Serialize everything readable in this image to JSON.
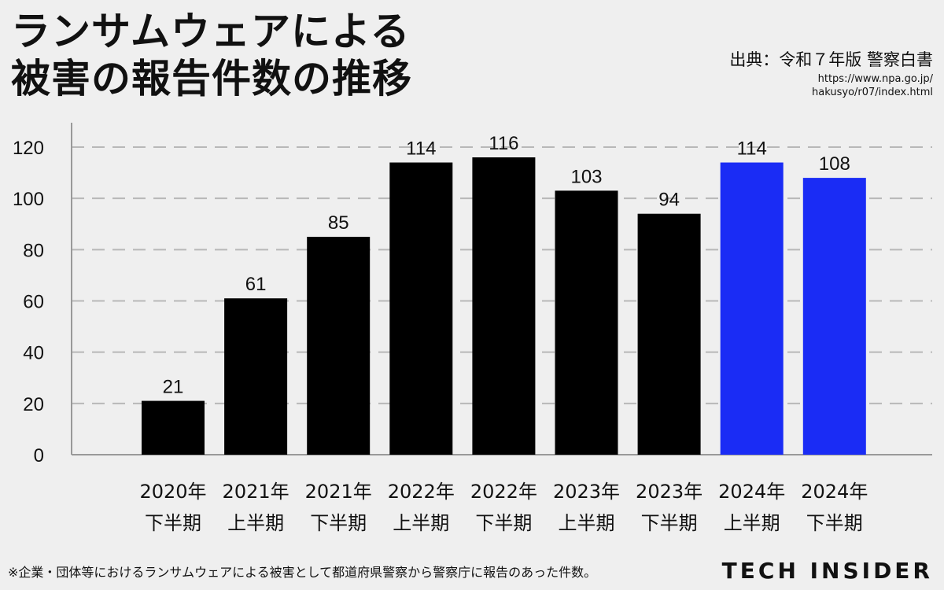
{
  "header": {
    "title_line1": "ランサムウェアによる",
    "title_line2": "被害の報告件数の推移",
    "source": "出典：令和７年版 警察白書",
    "source_url_line1": "https://www.npa.go.jp/",
    "source_url_line2": "hakusyo/r07/index.html"
  },
  "footer": {
    "note": "※企業・団体等におけるランサムウェアによる被害として都道府県警察から警察庁に報告のあった件数。",
    "brand": "TECH INSIDER"
  },
  "colors": {
    "background": "#efefef",
    "bar_default": "#000000",
    "bar_highlight": "#1a2cf5",
    "grid": "#b8b8b8"
  },
  "chart_data": {
    "type": "bar",
    "title": "ランサムウェアによる被害の報告件数の推移",
    "xlabel": "",
    "ylabel": "",
    "ylim": [
      0,
      120
    ],
    "yticks": [
      0,
      20,
      40,
      60,
      80,
      100,
      120
    ],
    "grid": true,
    "categories": [
      [
        "2020年",
        "下半期"
      ],
      [
        "2021年",
        "上半期"
      ],
      [
        "2021年",
        "下半期"
      ],
      [
        "2022年",
        "上半期"
      ],
      [
        "2022年",
        "下半期"
      ],
      [
        "2023年",
        "上半期"
      ],
      [
        "2023年",
        "下半期"
      ],
      [
        "2024年",
        "上半期"
      ],
      [
        "2024年",
        "下半期"
      ]
    ],
    "values": [
      21,
      61,
      85,
      114,
      116,
      103,
      94,
      114,
      108
    ],
    "highlight": [
      false,
      false,
      false,
      false,
      false,
      false,
      false,
      true,
      true
    ]
  }
}
